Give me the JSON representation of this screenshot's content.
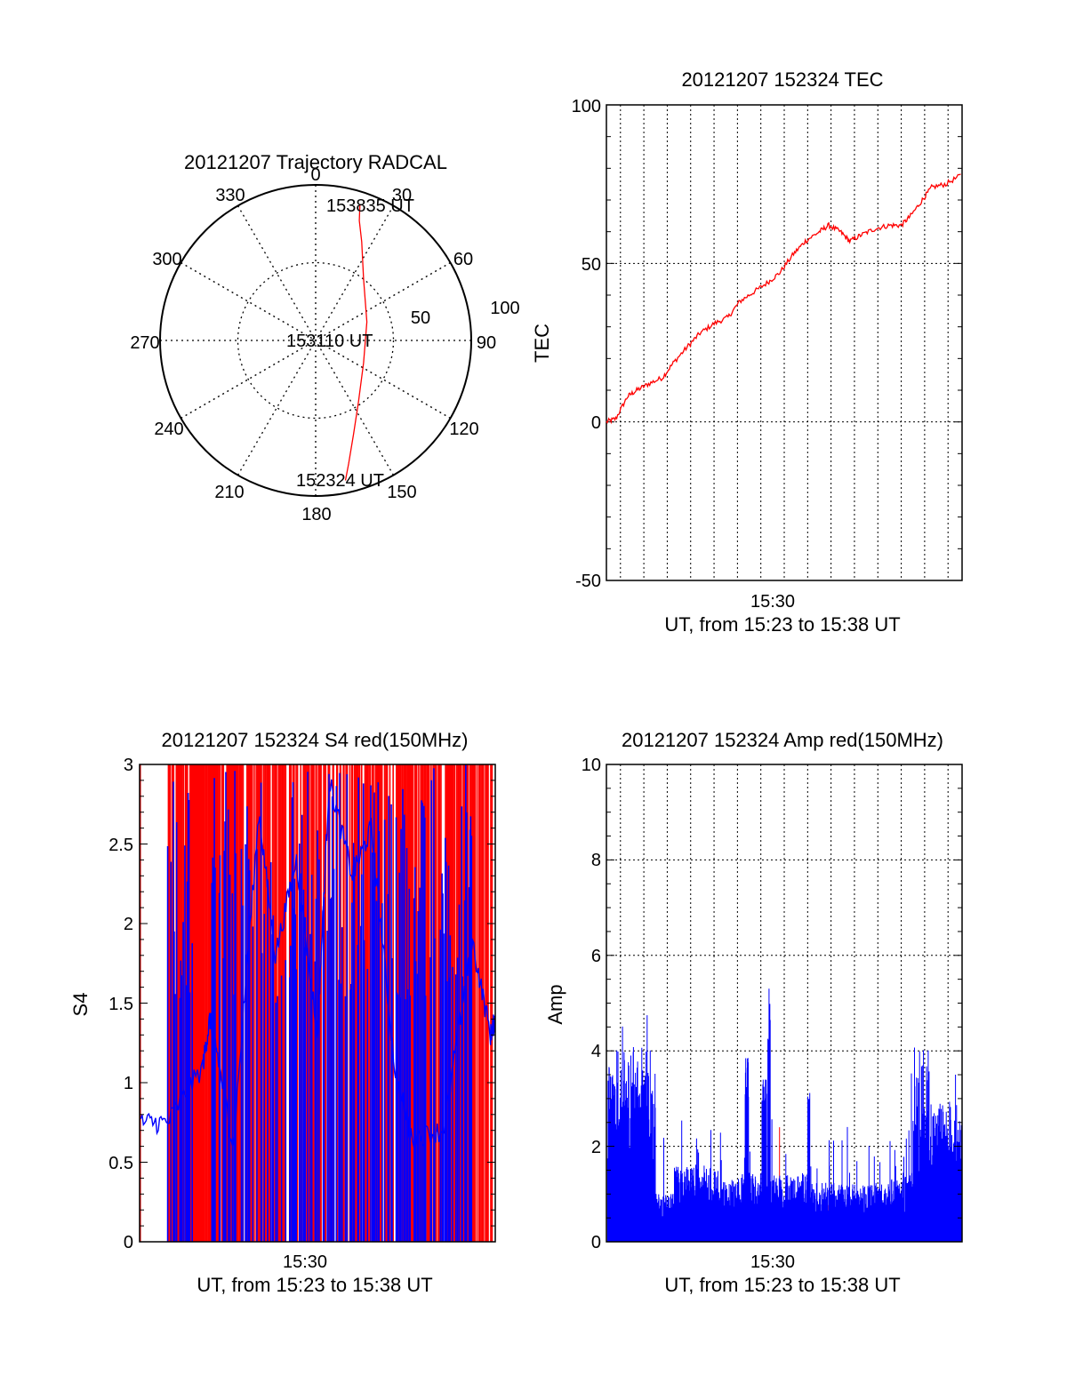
{
  "chart_data": [
    {
      "type": "polar-trajectory",
      "title": "20121207 Trajectory RADCAL",
      "azimuth_labels": [
        "0",
        "30",
        "60",
        "90",
        "120",
        "150",
        "180",
        "210",
        "240",
        "270",
        "300",
        "330"
      ],
      "radial_labels": [
        "50",
        "100"
      ],
      "point_labels": [
        "153835 UT",
        "153110 UT",
        "152324 UT"
      ],
      "line_color": "#ff0000",
      "trajectory": [
        {
          "az": 18,
          "r": 92
        },
        {
          "az": 20,
          "r": 82
        },
        {
          "az": 25,
          "r": 70
        },
        {
          "az": 38,
          "r": 50
        },
        {
          "az": 70,
          "r": 35
        },
        {
          "az": 115,
          "r": 34
        },
        {
          "az": 145,
          "r": 48
        },
        {
          "az": 158,
          "r": 65
        },
        {
          "az": 165,
          "r": 82
        },
        {
          "az": 168,
          "r": 92
        }
      ]
    },
    {
      "type": "line",
      "title": "20121207 152324 TEC",
      "ylabel": "TEC",
      "xlabel": "UT, from 15:23 to 15:38 UT",
      "x_tick_label": "15:30",
      "ylim": [
        -50,
        100
      ],
      "y_ticks": [
        "-50",
        "0",
        "50",
        "100"
      ],
      "xlim_minutes": [
        23.4,
        38.6
      ],
      "line_color": "#ff0000",
      "series": [
        {
          "x": [
            23.4,
            23.8,
            24.3,
            24.7,
            25.2,
            25.8,
            26.3,
            26.9,
            27.4,
            28.0,
            28.6,
            29.1,
            29.7,
            30.3,
            30.8,
            31.4,
            31.9,
            32.5,
            32.9,
            33.4,
            33.8,
            34.3,
            34.9,
            35.5,
            36.0,
            36.4,
            36.9,
            37.3,
            37.9,
            38.6
          ],
          "y": [
            0,
            1,
            8,
            10,
            12,
            14,
            19,
            24,
            28,
            31,
            33,
            38,
            41,
            44,
            47,
            53,
            57,
            60,
            62,
            60,
            57,
            59,
            61,
            62,
            62,
            65,
            70,
            74,
            75,
            78
          ]
        }
      ]
    },
    {
      "type": "line",
      "title": "20121207 152324 S4 red(150MHz)",
      "ylabel": "S4",
      "xlabel": "UT, from 15:23 to 15:38 UT",
      "x_tick_label": "15:30",
      "ylim": [
        0,
        3
      ],
      "y_ticks": [
        "0",
        "0.5",
        "1",
        "1.5",
        "2",
        "2.5",
        "3"
      ],
      "xlim_minutes": [
        23.4,
        38.6
      ],
      "colors": {
        "red": "#ff0000",
        "blue": "#0000ff"
      }
    },
    {
      "type": "line",
      "title": "20121207 152324 Amp red(150MHz)",
      "ylabel": "Amp",
      "xlabel": "UT, from 15:23 to 15:38 UT",
      "x_tick_label": "15:30",
      "ylim": [
        0,
        10
      ],
      "y_ticks": [
        "0",
        "2",
        "4",
        "6",
        "8",
        "10"
      ],
      "xlim_minutes": [
        23.4,
        38.6
      ],
      "colors": {
        "red": "#ff0000",
        "blue": "#0000ff"
      }
    }
  ]
}
